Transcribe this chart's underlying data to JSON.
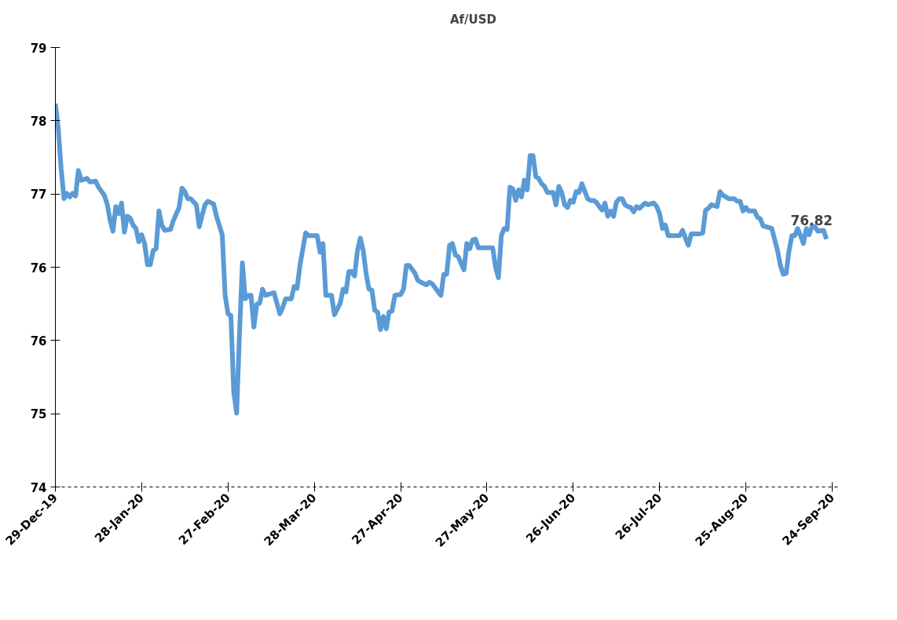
{
  "chart_data": {
    "type": "line",
    "legend": "top",
    "grid": false,
    "marker": "none",
    "line_style": "solid",
    "xlim": [
      "2019-12-29",
      "2020-09-27"
    ],
    "xticks": [
      {
        "value": "2019-12-29",
        "label": "29-Dec-19"
      },
      {
        "value": "2020-01-28",
        "label": "28-Jan-20"
      },
      {
        "value": "2020-02-27",
        "label": "27-Feb-20"
      },
      {
        "value": "2020-03-28",
        "label": "28-Mar-20"
      },
      {
        "value": "2020-04-27",
        "label": "27-Apr-20"
      },
      {
        "value": "2020-05-27",
        "label": "27-May-20"
      },
      {
        "value": "2020-06-26",
        "label": "26-Jun-20"
      },
      {
        "value": "2020-07-26",
        "label": "26-Jul-20"
      },
      {
        "value": "2020-08-25",
        "label": "25-Aug-20"
      },
      {
        "value": "2020-09-24",
        "label": "24-Sep-20"
      }
    ],
    "ylim": [
      74,
      79
    ],
    "yticks": [
      74,
      {
        "value": 74.833,
        "label": "75"
      },
      {
        "value": 75.667,
        "label": "76"
      },
      {
        "value": 76.5,
        "label": "76"
      },
      {
        "value": 77.333,
        "label": "77"
      },
      {
        "value": 78.167,
        "label": "78"
      },
      79
    ],
    "annotations": [
      {
        "text": "76.82",
        "x": "2020-09-22",
        "y": 76.82
      }
    ],
    "series": [
      {
        "name": "Af/USD",
        "color": "#5b9bd5",
        "x": [
          "2019-12-29",
          "2019-12-30",
          "2019-12-31",
          "2020-01-01",
          "2020-01-02",
          "2020-01-03",
          "2020-01-04",
          "2020-01-05",
          "2020-01-06",
          "2020-01-07",
          "2020-01-09",
          "2020-01-10",
          "2020-01-12",
          "2020-01-13",
          "2020-01-15",
          "2020-01-16",
          "2020-01-17",
          "2020-01-18",
          "2020-01-19",
          "2020-01-20",
          "2020-01-21",
          "2020-01-22",
          "2020-01-23",
          "2020-01-24",
          "2020-01-25",
          "2020-01-26",
          "2020-01-27",
          "2020-01-28",
          "2020-01-29",
          "2020-01-30",
          "2020-01-31",
          "2020-02-01",
          "2020-02-02",
          "2020-02-03",
          "2020-02-04",
          "2020-02-05",
          "2020-02-07",
          "2020-02-08",
          "2020-02-10",
          "2020-02-11",
          "2020-02-12",
          "2020-02-13",
          "2020-02-14",
          "2020-02-16",
          "2020-02-17",
          "2020-02-18",
          "2020-02-19",
          "2020-02-20",
          "2020-02-22",
          "2020-02-23",
          "2020-02-25",
          "2020-02-26",
          "2020-02-27",
          "2020-02-28",
          "2020-02-29",
          "2020-03-01",
          "2020-03-02",
          "2020-03-03",
          "2020-03-04",
          "2020-03-05",
          "2020-03-06",
          "2020-03-07",
          "2020-03-08",
          "2020-03-09",
          "2020-03-10",
          "2020-03-11",
          "2020-03-12",
          "2020-03-14",
          "2020-03-16",
          "2020-03-17",
          "2020-03-18",
          "2020-03-20",
          "2020-03-21",
          "2020-03-22",
          "2020-03-23",
          "2020-03-25",
          "2020-03-26",
          "2020-03-29",
          "2020-03-30",
          "2020-03-31",
          "2020-04-01",
          "2020-04-03",
          "2020-04-04",
          "2020-04-06",
          "2020-04-07",
          "2020-04-08",
          "2020-04-09",
          "2020-04-10",
          "2020-04-11",
          "2020-04-12",
          "2020-04-13",
          "2020-04-14",
          "2020-04-15",
          "2020-04-16",
          "2020-04-17",
          "2020-04-18",
          "2020-04-19",
          "2020-04-20",
          "2020-04-21",
          "2020-04-22",
          "2020-04-23",
          "2020-04-24",
          "2020-04-25",
          "2020-04-27",
          "2020-04-28",
          "2020-04-29",
          "2020-04-30",
          "2020-05-02",
          "2020-05-03",
          "2020-05-04",
          "2020-05-06",
          "2020-05-07",
          "2020-05-08",
          "2020-05-10",
          "2020-05-11",
          "2020-05-12",
          "2020-05-13",
          "2020-05-14",
          "2020-05-15",
          "2020-05-16",
          "2020-05-17",
          "2020-05-19",
          "2020-05-20",
          "2020-05-21",
          "2020-05-22",
          "2020-05-23",
          "2020-05-24",
          "2020-05-27",
          "2020-05-29",
          "2020-05-30",
          "2020-05-31",
          "2020-06-01",
          "2020-06-02",
          "2020-06-03",
          "2020-06-04",
          "2020-06-05",
          "2020-06-06",
          "2020-06-07",
          "2020-06-08",
          "2020-06-09",
          "2020-06-10",
          "2020-06-11",
          "2020-06-12",
          "2020-06-13",
          "2020-06-14",
          "2020-06-15",
          "2020-06-16",
          "2020-06-17",
          "2020-06-19",
          "2020-06-20",
          "2020-06-21",
          "2020-06-22",
          "2020-06-23",
          "2020-06-24",
          "2020-06-25",
          "2020-06-26",
          "2020-06-27",
          "2020-06-28",
          "2020-06-29",
          "2020-07-01",
          "2020-07-02",
          "2020-07-03",
          "2020-07-04",
          "2020-07-05",
          "2020-07-06",
          "2020-07-07",
          "2020-07-08",
          "2020-07-09",
          "2020-07-10",
          "2020-07-11",
          "2020-07-12",
          "2020-07-13",
          "2020-07-14",
          "2020-07-15",
          "2020-07-16",
          "2020-07-17",
          "2020-07-18",
          "2020-07-19",
          "2020-07-21",
          "2020-07-22",
          "2020-07-24",
          "2020-07-25",
          "2020-07-26",
          "2020-07-27",
          "2020-07-28",
          "2020-07-29",
          "2020-07-31",
          "2020-08-02",
          "2020-08-03",
          "2020-08-04",
          "2020-08-05",
          "2020-08-06",
          "2020-08-09",
          "2020-08-10",
          "2020-08-11",
          "2020-08-12",
          "2020-08-13",
          "2020-08-15",
          "2020-08-16",
          "2020-08-17",
          "2020-08-18",
          "2020-08-19",
          "2020-08-21",
          "2020-08-22",
          "2020-08-23",
          "2020-08-24",
          "2020-08-25",
          "2020-08-26",
          "2020-08-27",
          "2020-08-28",
          "2020-08-29",
          "2020-08-30",
          "2020-08-31",
          "2020-09-01",
          "2020-09-03",
          "2020-09-05",
          "2020-09-06",
          "2020-09-07",
          "2020-09-08",
          "2020-09-09",
          "2020-09-10",
          "2020-09-11",
          "2020-09-12",
          "2020-09-13",
          "2020-09-14",
          "2020-09-15",
          "2020-09-16",
          "2020-09-17",
          "2020-09-18",
          "2020-09-19",
          "2020-09-21",
          "2020-09-22"
        ],
        "values": [
          78.36,
          78.08,
          77.62,
          77.28,
          77.34,
          77.3,
          77.34,
          77.31,
          77.6,
          77.49,
          77.51,
          77.47,
          77.48,
          77.41,
          77.32,
          77.22,
          77.04,
          76.91,
          77.19,
          77.11,
          77.23,
          76.9,
          77.08,
          77.06,
          76.98,
          76.94,
          76.79,
          76.87,
          76.77,
          76.53,
          76.53,
          76.69,
          76.71,
          77.14,
          76.98,
          76.92,
          76.93,
          77.03,
          77.18,
          77.4,
          77.36,
          77.28,
          77.28,
          77.21,
          76.96,
          77.09,
          77.21,
          77.25,
          77.22,
          77.08,
          76.87,
          76.18,
          75.97,
          75.95,
          75.08,
          74.84,
          75.75,
          76.55,
          76.14,
          76.18,
          76.18,
          75.82,
          76.08,
          76.09,
          76.25,
          76.18,
          76.19,
          76.21,
          75.97,
          76.04,
          76.14,
          76.14,
          76.28,
          76.26,
          76.52,
          76.89,
          76.86,
          76.86,
          76.67,
          76.77,
          76.18,
          76.18,
          75.96,
          76.09,
          76.25,
          76.22,
          76.45,
          76.45,
          76.4,
          76.69,
          76.83,
          76.69,
          76.43,
          76.25,
          76.24,
          76.01,
          75.99,
          75.79,
          75.94,
          75.8,
          75.99,
          76.0,
          76.18,
          76.19,
          76.25,
          76.52,
          76.52,
          76.43,
          76.35,
          76.33,
          76.3,
          76.33,
          76.31,
          76.22,
          76.18,
          76.42,
          76.42,
          76.75,
          76.77,
          76.64,
          76.62,
          76.47,
          76.77,
          76.71,
          76.81,
          76.82,
          76.72,
          76.72,
          76.72,
          76.5,
          76.38,
          76.86,
          76.94,
          76.93,
          77.41,
          77.39,
          77.26,
          77.38,
          77.3,
          77.49,
          77.38,
          77.77,
          77.77,
          77.53,
          77.51,
          77.45,
          77.42,
          77.35,
          77.35,
          77.21,
          77.42,
          77.35,
          77.21,
          77.18,
          77.26,
          77.24,
          77.36,
          77.35,
          77.45,
          77.28,
          77.26,
          77.26,
          77.24,
          77.19,
          77.15,
          77.23,
          77.08,
          77.14,
          77.08,
          77.24,
          77.28,
          77.28,
          77.21,
          77.19,
          77.18,
          77.13,
          77.19,
          77.17,
          77.23,
          77.21,
          77.23,
          77.19,
          77.11,
          76.94,
          76.98,
          76.86,
          76.86,
          76.86,
          76.92,
          76.83,
          76.75,
          76.88,
          76.88,
          76.89,
          77.15,
          77.17,
          77.21,
          77.19,
          77.36,
          77.32,
          77.3,
          77.28,
          77.28,
          77.25,
          77.25,
          77.14,
          77.18,
          77.14,
          77.14,
          77.14,
          77.07,
          77.05,
          76.97,
          76.96,
          76.94,
          76.69,
          76.52,
          76.42,
          76.43,
          76.69,
          76.86,
          76.86,
          76.94,
          76.86,
          76.77,
          76.94,
          76.87,
          76.97,
          76.96,
          76.91,
          76.92,
          76.82
        ]
      }
    ]
  }
}
